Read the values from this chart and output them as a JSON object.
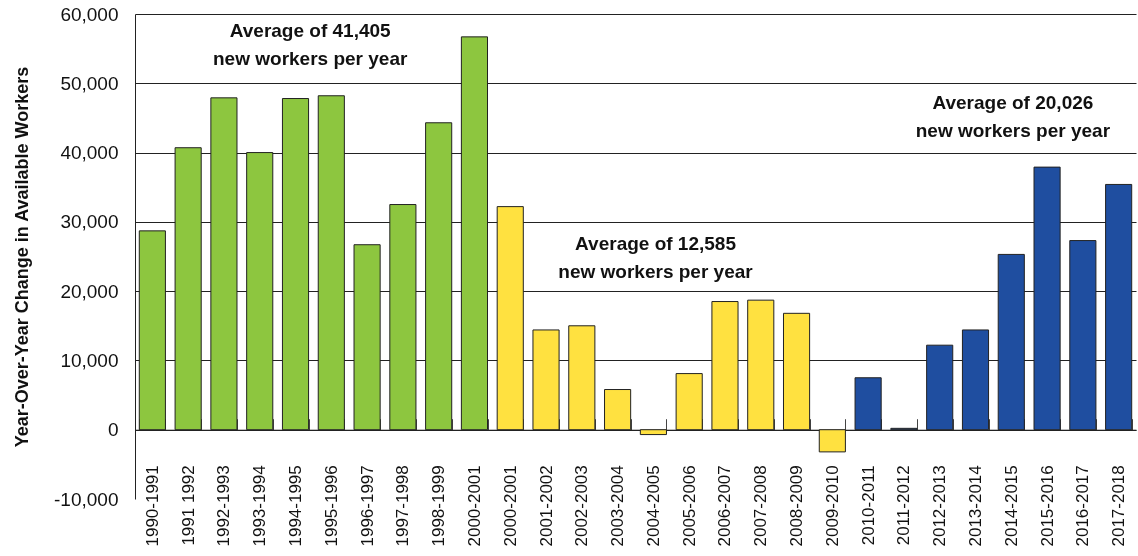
{
  "chart_data": {
    "type": "bar",
    "ylabel": "Year-Over-Year Change in Available Workers",
    "categories": [
      "1990-1991",
      "1991 1992",
      "1992-1993",
      "1993-1994",
      "1994-1995",
      "1995-1996",
      "1996-1997",
      "1997-1998",
      "1998-1999",
      "2000-2001",
      "2000-2001",
      "2001-2002",
      "2002-2003",
      "2003-2004",
      "2004-2005",
      "2005-2006",
      "2006-2007",
      "2007-2008",
      "2008-2009",
      "2009-2010",
      "2010-2011",
      "2011-2012",
      "2012-2013",
      "2013-2014",
      "2014-2015",
      "2015-2016",
      "2016-2017",
      "2017-2018"
    ],
    "values": [
      28700,
      40700,
      47900,
      40000,
      47800,
      48200,
      26700,
      32500,
      44300,
      56700,
      32200,
      14400,
      15000,
      5800,
      -700,
      8100,
      18500,
      18700,
      16800,
      -3200,
      7500,
      200,
      12200,
      14400,
      25300,
      37900,
      27300,
      35400
    ],
    "colors": [
      "#8dc63f",
      "#8dc63f",
      "#8dc63f",
      "#8dc63f",
      "#8dc63f",
      "#8dc63f",
      "#8dc63f",
      "#8dc63f",
      "#8dc63f",
      "#8dc63f",
      "#ffe140",
      "#ffe140",
      "#ffe140",
      "#ffe140",
      "#ffe140",
      "#ffe140",
      "#ffe140",
      "#ffe140",
      "#ffe140",
      "#ffe140",
      "#1f4ea0",
      "#1f4ea0",
      "#1f4ea0",
      "#1f4ea0",
      "#1f4ea0",
      "#1f4ea0",
      "#1f4ea0",
      "#1f4ea0"
    ],
    "ylim": [
      -10000,
      60000
    ],
    "yticks": [
      {
        "value": -10000,
        "label": "-10,000"
      },
      0,
      {
        "value": 10000,
        "label": "10,000"
      },
      {
        "value": 20000,
        "label": "20,000"
      },
      {
        "value": 30000,
        "label": "30,000"
      },
      {
        "value": 40000,
        "label": "40,000"
      },
      {
        "value": 50000,
        "label": "50,000"
      },
      {
        "value": 60000,
        "label": "60,000"
      }
    ],
    "grid": "y",
    "annotations": [
      "Average of 41,405\nnew workers per year",
      "Average of 12,585\nnew workers per year",
      "Average of 20,026\nnew workers per year"
    ]
  }
}
